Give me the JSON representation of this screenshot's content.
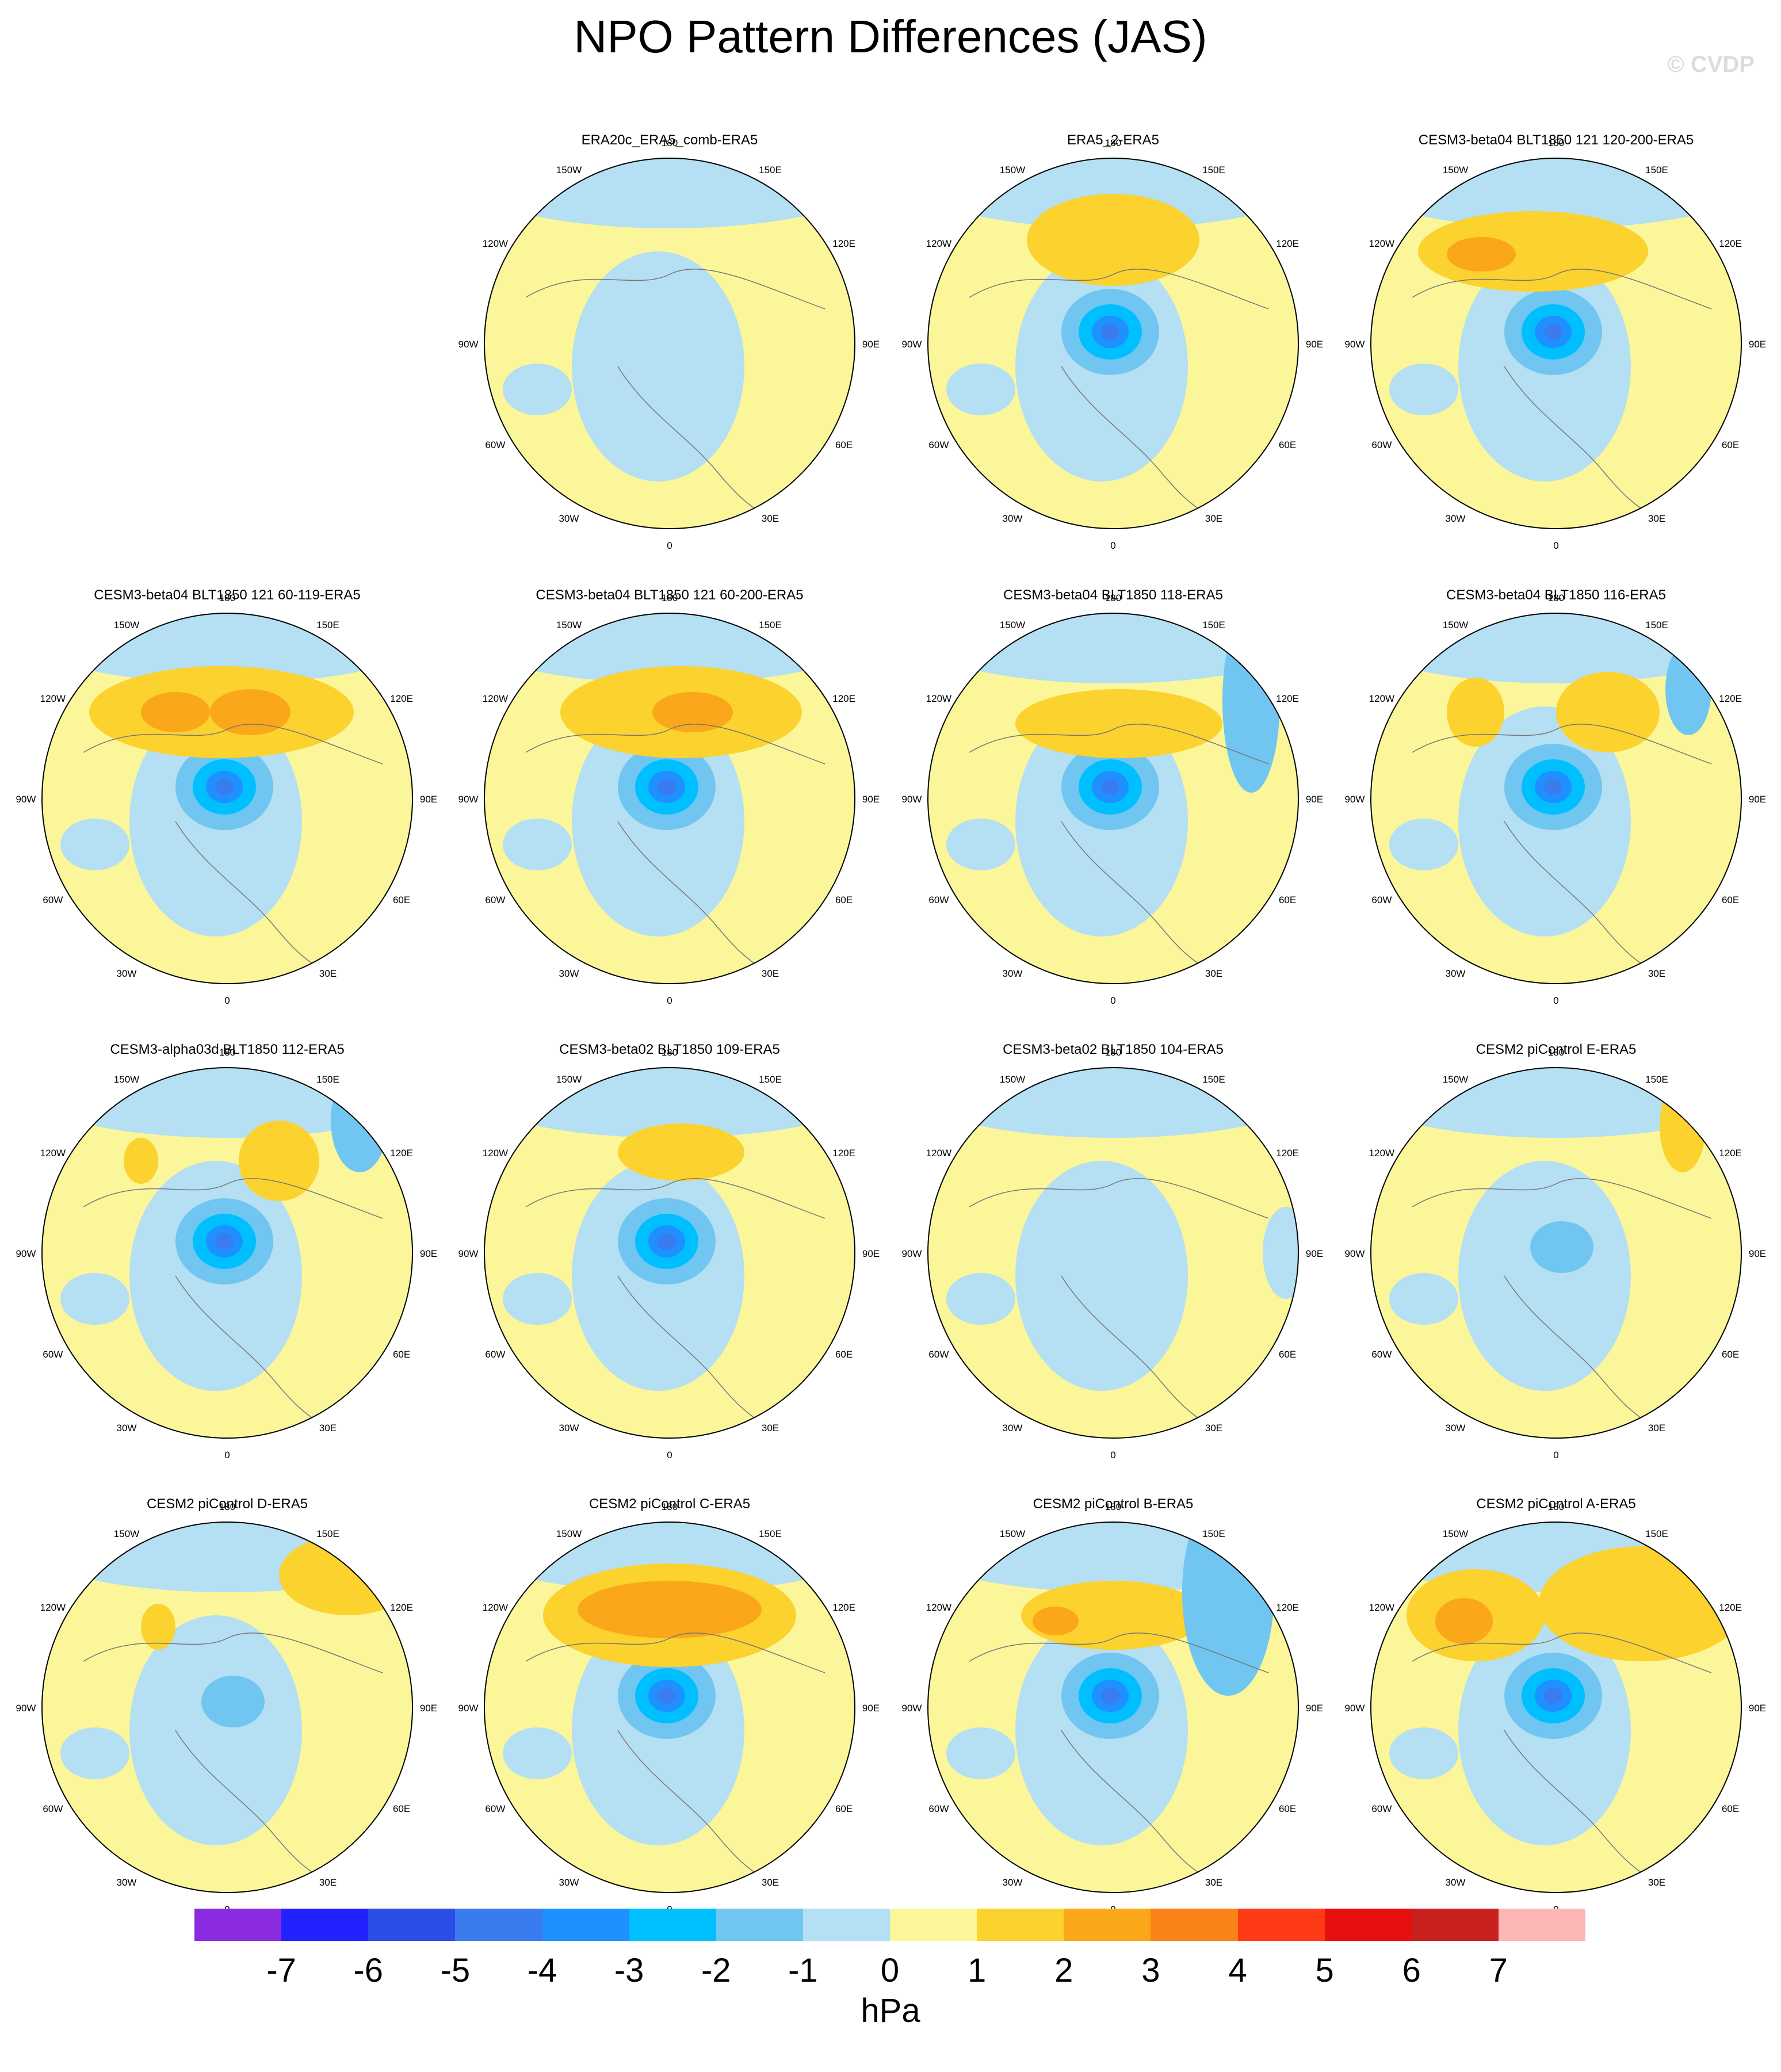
{
  "title": "NPO Pattern Differences (JAS)",
  "credit": "© CVDP",
  "lon_labels": [
    "180",
    "150E",
    "120E",
    "90E",
    "60E",
    "30E",
    "0",
    "30W",
    "60W",
    "90W",
    "120W",
    "150W"
  ],
  "panels": [
    {
      "label": "ERA20c_ERA5_comb-ERA5",
      "row": 0,
      "col": 1
    },
    {
      "label": "ERA5_2-ERA5",
      "row": 0,
      "col": 2
    },
    {
      "label": "CESM3-beta04 BLT1850 121 120-200-ERA5",
      "row": 0,
      "col": 3
    },
    {
      "label": "CESM3-beta04 BLT1850 121 60-119-ERA5",
      "row": 1,
      "col": 0
    },
    {
      "label": "CESM3-beta04 BLT1850 121 60-200-ERA5",
      "row": 1,
      "col": 1
    },
    {
      "label": "CESM3-beta04 BLT1850 118-ERA5",
      "row": 1,
      "col": 2
    },
    {
      "label": "CESM3-beta04 BLT1850 116-ERA5",
      "row": 1,
      "col": 3
    },
    {
      "label": "CESM3-alpha03d BLT1850 112-ERA5",
      "row": 2,
      "col": 0
    },
    {
      "label": "CESM3-beta02 BLT1850 109-ERA5",
      "row": 2,
      "col": 1
    },
    {
      "label": "CESM3-beta02 BLT1850 104-ERA5",
      "row": 2,
      "col": 2
    },
    {
      "label": "CESM2 piControl E-ERA5",
      "row": 2,
      "col": 3
    },
    {
      "label": "CESM2 piControl D-ERA5",
      "row": 3,
      "col": 0
    },
    {
      "label": "CESM2 piControl C-ERA5",
      "row": 3,
      "col": 1
    },
    {
      "label": "CESM2 piControl B-ERA5",
      "row": 3,
      "col": 2
    },
    {
      "label": "CESM2 piControl A-ERA5",
      "row": 3,
      "col": 3
    }
  ],
  "colorbar": {
    "colors": [
      "#8a2be2",
      "#2222ff",
      "#2b4de8",
      "#3a7bf0",
      "#1e90ff",
      "#00bfff",
      "#70c6f0",
      "#b5dff2",
      "#fbf69a",
      "#fbd22e",
      "#fba71a",
      "#fb8216",
      "#ff3a16",
      "#e80f0f",
      "#c81f1f",
      "#fdb6b6"
    ],
    "tick_labels": [
      "-7",
      "-6",
      "-5",
      "-4",
      "-3",
      "-2",
      "-1",
      "0",
      "1",
      "2",
      "3",
      "4",
      "5",
      "6",
      "7"
    ],
    "units": "hPa"
  }
}
